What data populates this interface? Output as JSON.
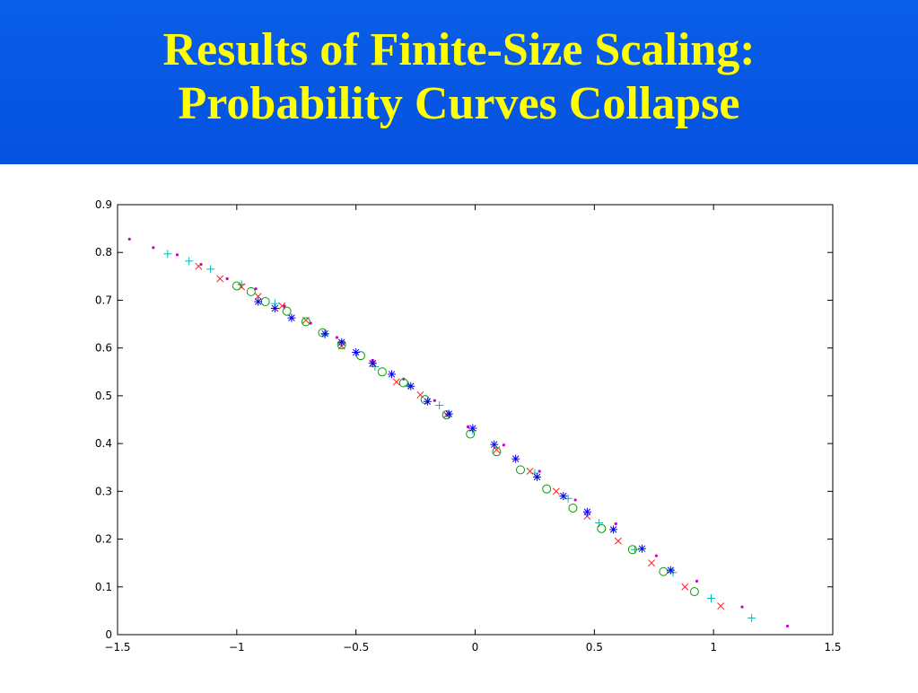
{
  "slide": {
    "title_line1": "Results of Finite-Size Scaling:",
    "title_line2": "Probability Curves Collapse",
    "header_color": "#0a5ee8",
    "title_color": "#ffff00"
  },
  "chart_data": {
    "type": "scatter",
    "title": "",
    "xlabel": "",
    "ylabel": "",
    "xlim": [
      -1.5,
      1.5
    ],
    "ylim": [
      0,
      0.9
    ],
    "xticks": [
      -1.5,
      -1,
      -0.5,
      0,
      0.5,
      1,
      1.5
    ],
    "xtick_labels": [
      "−1.5",
      "−1",
      "−0.5",
      "0",
      "0.5",
      "1",
      "1.5"
    ],
    "yticks": [
      0,
      0.1,
      0.2,
      0.3,
      0.4,
      0.5,
      0.6,
      0.7,
      0.8,
      0.9
    ],
    "ytick_labels": [
      "0",
      "0.1",
      "0.2",
      "0.3",
      "0.4",
      "0.5",
      "0.6",
      "0.7",
      "0.8",
      "0.9"
    ],
    "grid": false,
    "legend": "none",
    "series": [
      {
        "marker": "dot",
        "color": "#cc00cc",
        "points": [
          [
            -1.45,
            0.828
          ],
          [
            -1.35,
            0.81
          ],
          [
            -1.25,
            0.795
          ],
          [
            -1.15,
            0.775
          ],
          [
            -1.04,
            0.745
          ],
          [
            -0.92,
            0.724
          ],
          [
            -0.8,
            0.688
          ],
          [
            -0.69,
            0.652
          ],
          [
            -0.58,
            0.622
          ],
          [
            -0.43,
            0.574
          ],
          [
            -0.3,
            0.535
          ],
          [
            -0.17,
            0.49
          ],
          [
            -0.03,
            0.435
          ],
          [
            0.12,
            0.397
          ],
          [
            0.27,
            0.342
          ],
          [
            0.42,
            0.282
          ],
          [
            0.59,
            0.232
          ],
          [
            0.76,
            0.165
          ],
          [
            0.93,
            0.112
          ],
          [
            1.12,
            0.058
          ],
          [
            1.31,
            0.018
          ]
        ]
      },
      {
        "marker": "plus",
        "color": "#00b8b8",
        "points": [
          [
            -1.29,
            0.797
          ],
          [
            -1.2,
            0.782
          ],
          [
            -1.11,
            0.765
          ],
          [
            -0.98,
            0.733
          ],
          [
            -0.84,
            0.693
          ],
          [
            -0.63,
            0.628
          ],
          [
            -0.42,
            0.561
          ],
          [
            -0.28,
            0.522
          ],
          [
            -0.15,
            0.48
          ],
          [
            -0.01,
            0.427
          ],
          [
            0.25,
            0.338
          ],
          [
            0.39,
            0.285
          ],
          [
            0.52,
            0.234
          ],
          [
            0.67,
            0.178
          ],
          [
            0.83,
            0.13
          ],
          [
            0.99,
            0.076
          ],
          [
            1.16,
            0.035
          ]
        ]
      },
      {
        "marker": "x",
        "color": "#ff2020",
        "points": [
          [
            -1.16,
            0.771
          ],
          [
            -1.07,
            0.745
          ],
          [
            -0.98,
            0.728
          ],
          [
            -0.91,
            0.708
          ],
          [
            -0.81,
            0.688
          ],
          [
            -0.71,
            0.658
          ],
          [
            -0.56,
            0.604
          ],
          [
            -0.43,
            0.567
          ],
          [
            -0.33,
            0.529
          ],
          [
            -0.23,
            0.502
          ],
          [
            -0.12,
            0.46
          ],
          [
            0.09,
            0.387
          ],
          [
            0.23,
            0.342
          ],
          [
            0.34,
            0.3
          ],
          [
            0.47,
            0.248
          ],
          [
            0.6,
            0.196
          ],
          [
            0.74,
            0.15
          ],
          [
            0.88,
            0.1
          ],
          [
            1.03,
            0.06
          ]
        ]
      },
      {
        "marker": "circle",
        "color": "#00a000",
        "points": [
          [
            -1.0,
            0.73
          ],
          [
            -0.94,
            0.718
          ],
          [
            -0.88,
            0.697
          ],
          [
            -0.79,
            0.677
          ],
          [
            -0.71,
            0.655
          ],
          [
            -0.64,
            0.632
          ],
          [
            -0.56,
            0.607
          ],
          [
            -0.48,
            0.584
          ],
          [
            -0.39,
            0.55
          ],
          [
            -0.3,
            0.527
          ],
          [
            -0.21,
            0.492
          ],
          [
            -0.12,
            0.46
          ],
          [
            -0.02,
            0.42
          ],
          [
            0.09,
            0.383
          ],
          [
            0.19,
            0.345
          ],
          [
            0.3,
            0.305
          ],
          [
            0.41,
            0.265
          ],
          [
            0.53,
            0.222
          ],
          [
            0.66,
            0.178
          ],
          [
            0.79,
            0.132
          ],
          [
            0.92,
            0.09
          ]
        ]
      },
      {
        "marker": "asterisk",
        "color": "#0000ee",
        "points": [
          [
            -0.91,
            0.697
          ],
          [
            -0.84,
            0.683
          ],
          [
            -0.77,
            0.663
          ],
          [
            -0.63,
            0.63
          ],
          [
            -0.56,
            0.612
          ],
          [
            -0.5,
            0.591
          ],
          [
            -0.43,
            0.568
          ],
          [
            -0.35,
            0.545
          ],
          [
            -0.27,
            0.52
          ],
          [
            -0.2,
            0.488
          ],
          [
            -0.11,
            0.462
          ],
          [
            -0.01,
            0.432
          ],
          [
            0.08,
            0.398
          ],
          [
            0.17,
            0.368
          ],
          [
            0.26,
            0.33
          ],
          [
            0.37,
            0.29
          ],
          [
            0.47,
            0.257
          ],
          [
            0.58,
            0.22
          ],
          [
            0.7,
            0.18
          ],
          [
            0.82,
            0.135
          ]
        ]
      }
    ]
  }
}
